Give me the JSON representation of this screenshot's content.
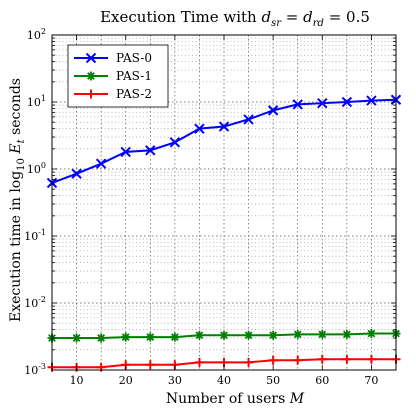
{
  "chart_data": {
    "type": "line",
    "title_parts": [
      "Execution Time with ",
      "d",
      "sr",
      " = ",
      "d",
      "rd",
      " = 0.5"
    ],
    "xlabel_parts": [
      "Number of users ",
      "M"
    ],
    "ylabel_parts": [
      "Execution time in log",
      "10",
      " ",
      "E",
      "t",
      " seconds"
    ],
    "xlim": [
      5,
      75
    ],
    "ylim": [
      0.001,
      100
    ],
    "yscale": "log",
    "grid": true,
    "legend_position": "top-left",
    "x_ticks": [
      10,
      20,
      30,
      40,
      50,
      60,
      70
    ],
    "y_ticks": [
      {
        "base": "10",
        "exp": "-3",
        "value": 0.001
      },
      {
        "base": "10",
        "exp": "-2",
        "value": 0.01
      },
      {
        "base": "10",
        "exp": "-1",
        "value": 0.1
      },
      {
        "base": "10",
        "exp": "0",
        "value": 1
      },
      {
        "base": "10",
        "exp": "1",
        "value": 10
      },
      {
        "base": "10",
        "exp": "2",
        "value": 100
      }
    ],
    "x": [
      5,
      10,
      15,
      20,
      25,
      30,
      35,
      40,
      45,
      50,
      55,
      60,
      65,
      70,
      75
    ],
    "series": [
      {
        "name": "PAS-0",
        "color": "#0000ff",
        "marker": "x",
        "values": [
          0.62,
          0.85,
          1.2,
          1.8,
          1.9,
          2.5,
          4.0,
          4.3,
          5.5,
          7.5,
          9.2,
          9.6,
          10.0,
          10.5,
          10.8
        ]
      },
      {
        "name": "PAS-1",
        "color": "#008000",
        "marker": "star",
        "values": [
          0.003,
          0.003,
          0.003,
          0.0031,
          0.0031,
          0.0031,
          0.0033,
          0.0033,
          0.0033,
          0.0033,
          0.0034,
          0.0034,
          0.0034,
          0.0035,
          0.0035
        ]
      },
      {
        "name": "PAS-2",
        "color": "#ff0000",
        "marker": "plus",
        "values": [
          0.0011,
          0.0011,
          0.0011,
          0.0012,
          0.0012,
          0.0012,
          0.0013,
          0.0013,
          0.0013,
          0.0014,
          0.0014,
          0.00145,
          0.00145,
          0.00145,
          0.00145
        ]
      }
    ]
  }
}
